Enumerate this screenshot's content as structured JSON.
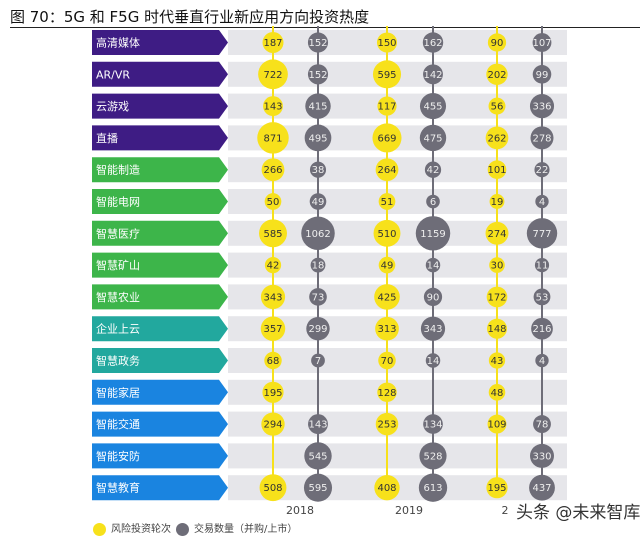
{
  "title": "图 70：5G 和 F5G 时代垂直行业新应用方向投资热度",
  "watermark": "头条 @未来智库",
  "colors": {
    "yellow": "#f7e11b",
    "gray": "#6e6d78",
    "band": "#e6e6ea",
    "purple": "#3e1c84",
    "green": "#3db54a",
    "teal": "#22a89e",
    "blue": "#1a84e0"
  },
  "chart_data": {
    "type": "bubble-table",
    "years": [
      "2018",
      "2019",
      "2"
    ],
    "categories": [
      {
        "label": "高清媒体",
        "group": "purple"
      },
      {
        "label": "AR/VR",
        "group": "purple"
      },
      {
        "label": "云游戏",
        "group": "purple"
      },
      {
        "label": "直播",
        "group": "purple"
      },
      {
        "label": "智能制造",
        "group": "green"
      },
      {
        "label": "智能电网",
        "group": "green"
      },
      {
        "label": "智慧医疗",
        "group": "green"
      },
      {
        "label": "智慧矿山",
        "group": "green"
      },
      {
        "label": "智慧农业",
        "group": "green"
      },
      {
        "label": "企业上云",
        "group": "teal"
      },
      {
        "label": "智慧政务",
        "group": "teal"
      },
      {
        "label": "智能家居",
        "group": "blue"
      },
      {
        "label": "智能交通",
        "group": "blue"
      },
      {
        "label": "智能安防",
        "group": "blue"
      },
      {
        "label": "智慧教育",
        "group": "blue"
      }
    ],
    "series": [
      {
        "name": "风险投资轮次",
        "color": "yellow",
        "values": [
          [
            187,
            150,
            90
          ],
          [
            722,
            595,
            202
          ],
          [
            143,
            117,
            56
          ],
          [
            871,
            669,
            262
          ],
          [
            266,
            264,
            101
          ],
          [
            50,
            51,
            19
          ],
          [
            585,
            510,
            274
          ],
          [
            42,
            49,
            30
          ],
          [
            343,
            425,
            172
          ],
          [
            357,
            313,
            148
          ],
          [
            68,
            70,
            43
          ],
          [
            195,
            128,
            48
          ],
          [
            294,
            253,
            109
          ],
          [
            null,
            null,
            null
          ],
          [
            508,
            408,
            195
          ]
        ]
      },
      {
        "name": "交易数量（并购/上市）",
        "color": "gray",
        "values": [
          [
            152,
            162,
            107
          ],
          [
            152,
            142,
            99
          ],
          [
            415,
            455,
            336
          ],
          [
            495,
            475,
            278
          ],
          [
            38,
            42,
            22
          ],
          [
            49,
            6,
            4
          ],
          [
            1062,
            1159,
            777
          ],
          [
            18,
            14,
            11
          ],
          [
            73,
            90,
            53
          ],
          [
            299,
            343,
            216
          ],
          [
            7,
            14,
            4
          ],
          [
            null,
            null,
            null
          ],
          [
            143,
            134,
            78
          ],
          [
            545,
            528,
            330
          ],
          [
            595,
            613,
            437
          ]
        ]
      }
    ],
    "legend_position": "bottom-left"
  }
}
